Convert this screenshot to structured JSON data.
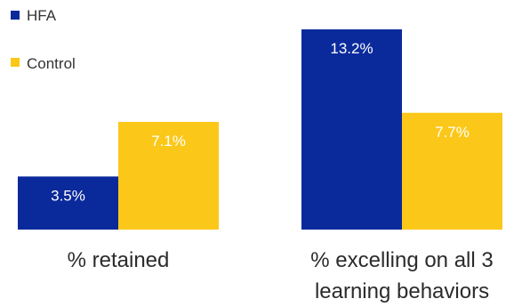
{
  "chart_data": {
    "type": "bar",
    "categories": [
      "% retained",
      "% excelling on all 3 learning behaviors"
    ],
    "category_label_lines": [
      [
        "% retained"
      ],
      [
        "% excelling on all 3",
        "learning behaviors"
      ]
    ],
    "series": [
      {
        "name": "HFA",
        "values": [
          3.5,
          13.2
        ],
        "labels": [
          "3.5%",
          "13.2%"
        ],
        "color": "#0a2a9c"
      },
      {
        "name": "Control",
        "values": [
          7.1,
          7.7
        ],
        "labels": [
          "7.1%",
          "7.7%"
        ],
        "color": "#fbc81a"
      }
    ],
    "title": "",
    "xlabel": "",
    "ylabel": "",
    "ylim": [
      0,
      13.2
    ],
    "grid": false,
    "legend": "top-left"
  }
}
